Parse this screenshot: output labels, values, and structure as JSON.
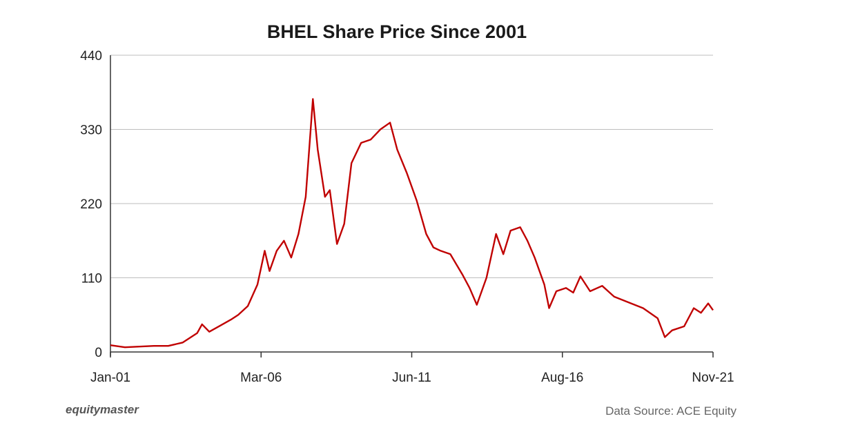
{
  "chart_data": {
    "type": "line",
    "title": "BHEL Share Price Since 2001",
    "xlabel": "",
    "ylabel": "",
    "x_ticks": [
      "Jan-01",
      "Mar-06",
      "Jun-11",
      "Aug-16",
      "Nov-21"
    ],
    "y_ticks": [
      0,
      110,
      220,
      330,
      440
    ],
    "ylim": [
      0,
      440
    ],
    "xlim": [
      "2001-01",
      "2021-11"
    ],
    "grid": "horizontal",
    "legend": "none",
    "series": [
      {
        "color": "#c00000",
        "points": [
          [
            "2001-01",
            10
          ],
          [
            "2001-07",
            7
          ],
          [
            "2002-01",
            8
          ],
          [
            "2002-07",
            9
          ],
          [
            "2003-01",
            9
          ],
          [
            "2003-07",
            14
          ],
          [
            "2004-01",
            28
          ],
          [
            "2004-03",
            41
          ],
          [
            "2004-06",
            30
          ],
          [
            "2004-10",
            38
          ],
          [
            "2005-03",
            48
          ],
          [
            "2005-06",
            55
          ],
          [
            "2005-10",
            68
          ],
          [
            "2006-02",
            100
          ],
          [
            "2006-05",
            150
          ],
          [
            "2006-07",
            120
          ],
          [
            "2006-10",
            150
          ],
          [
            "2007-01",
            165
          ],
          [
            "2007-04",
            140
          ],
          [
            "2007-07",
            175
          ],
          [
            "2007-10",
            230
          ],
          [
            "2008-01",
            375
          ],
          [
            "2008-03",
            300
          ],
          [
            "2008-06",
            230
          ],
          [
            "2008-08",
            240
          ],
          [
            "2008-11",
            160
          ],
          [
            "2009-02",
            190
          ],
          [
            "2009-05",
            280
          ],
          [
            "2009-09",
            310
          ],
          [
            "2010-01",
            315
          ],
          [
            "2010-05",
            330
          ],
          [
            "2010-09",
            340
          ],
          [
            "2010-12",
            300
          ],
          [
            "2011-04",
            265
          ],
          [
            "2011-08",
            225
          ],
          [
            "2011-12",
            175
          ],
          [
            "2012-03",
            155
          ],
          [
            "2012-06",
            150
          ],
          [
            "2012-10",
            145
          ],
          [
            "2013-03",
            115
          ],
          [
            "2013-06",
            95
          ],
          [
            "2013-09",
            70
          ],
          [
            "2014-01",
            110
          ],
          [
            "2014-05",
            175
          ],
          [
            "2014-08",
            145
          ],
          [
            "2014-11",
            180
          ],
          [
            "2015-03",
            185
          ],
          [
            "2015-06",
            165
          ],
          [
            "2015-09",
            140
          ],
          [
            "2016-01",
            100
          ],
          [
            "2016-03",
            65
          ],
          [
            "2016-06",
            90
          ],
          [
            "2016-10",
            95
          ],
          [
            "2017-01",
            88
          ],
          [
            "2017-04",
            112
          ],
          [
            "2017-08",
            90
          ],
          [
            "2018-01",
            98
          ],
          [
            "2018-06",
            82
          ],
          [
            "2019-01",
            72
          ],
          [
            "2019-06",
            65
          ],
          [
            "2019-12",
            50
          ],
          [
            "2020-03",
            22
          ],
          [
            "2020-06",
            32
          ],
          [
            "2020-11",
            38
          ],
          [
            "2021-03",
            65
          ],
          [
            "2021-06",
            58
          ],
          [
            "2021-09",
            72
          ],
          [
            "2021-11",
            62
          ]
        ]
      }
    ]
  },
  "footer": {
    "brand": "equitymaster",
    "source": "Data Source: ACE Equity"
  }
}
